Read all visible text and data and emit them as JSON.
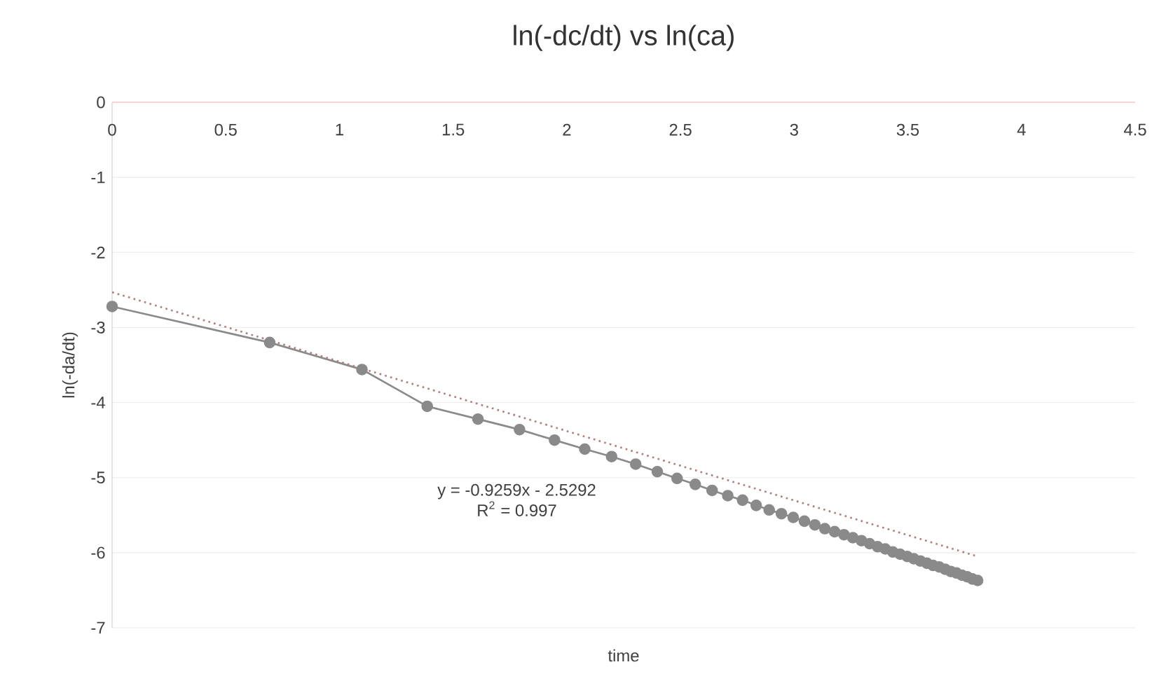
{
  "chart_data": {
    "type": "line",
    "title": "ln(-dc/dt) vs ln(ca)",
    "xlabel": "time",
    "ylabel": "ln(-da/dt)",
    "xlim": [
      0,
      4.5
    ],
    "ylim": [
      -7,
      0
    ],
    "xticks": [
      0,
      0.5,
      1,
      1.5,
      2,
      2.5,
      3,
      3.5,
      4,
      4.5
    ],
    "yticks": [
      -7,
      -6,
      -5,
      -4,
      -3,
      -2,
      -1,
      0
    ],
    "grid": "y",
    "marker": "circle",
    "annotations": [
      "y = -0.9259x - 2.5292",
      "R$^{2}$ = 0.997"
    ],
    "series": [
      {
        "color": "#8a8a8a",
        "line_style": "solid",
        "x": [
          0,
          0.693,
          1.099,
          1.386,
          1.609,
          1.792,
          1.946,
          2.079,
          2.197,
          2.303,
          2.398,
          2.485,
          2.565,
          2.639,
          2.708,
          2.773,
          2.833,
          2.89,
          2.944,
          2.996,
          3.045,
          3.091,
          3.135,
          3.178,
          3.219,
          3.258,
          3.296,
          3.332,
          3.367,
          3.401,
          3.434,
          3.466,
          3.497,
          3.526,
          3.555,
          3.584,
          3.611,
          3.638,
          3.664,
          3.689,
          3.714,
          3.738,
          3.761,
          3.784,
          3.807
        ],
        "values": [
          -2.72,
          -3.2,
          -3.56,
          -4.05,
          -4.22,
          -4.36,
          -4.5,
          -4.62,
          -4.72,
          -4.82,
          -4.92,
          -5.01,
          -5.09,
          -5.17,
          -5.24,
          -5.3,
          -5.37,
          -5.43,
          -5.48,
          -5.53,
          -5.58,
          -5.63,
          -5.68,
          -5.72,
          -5.76,
          -5.8,
          -5.84,
          -5.88,
          -5.92,
          -5.95,
          -5.99,
          -6.02,
          -6.05,
          -6.08,
          -6.11,
          -6.14,
          -6.17,
          -6.19,
          -6.22,
          -6.25,
          -6.27,
          -6.3,
          -6.32,
          -6.35,
          -6.37
        ]
      },
      {
        "type": "line",
        "color": "#b08080",
        "line_style": "dotted",
        "marker": "none",
        "x": [
          0,
          3.807
        ],
        "values": [
          -2.53,
          -6.05
        ]
      }
    ]
  }
}
